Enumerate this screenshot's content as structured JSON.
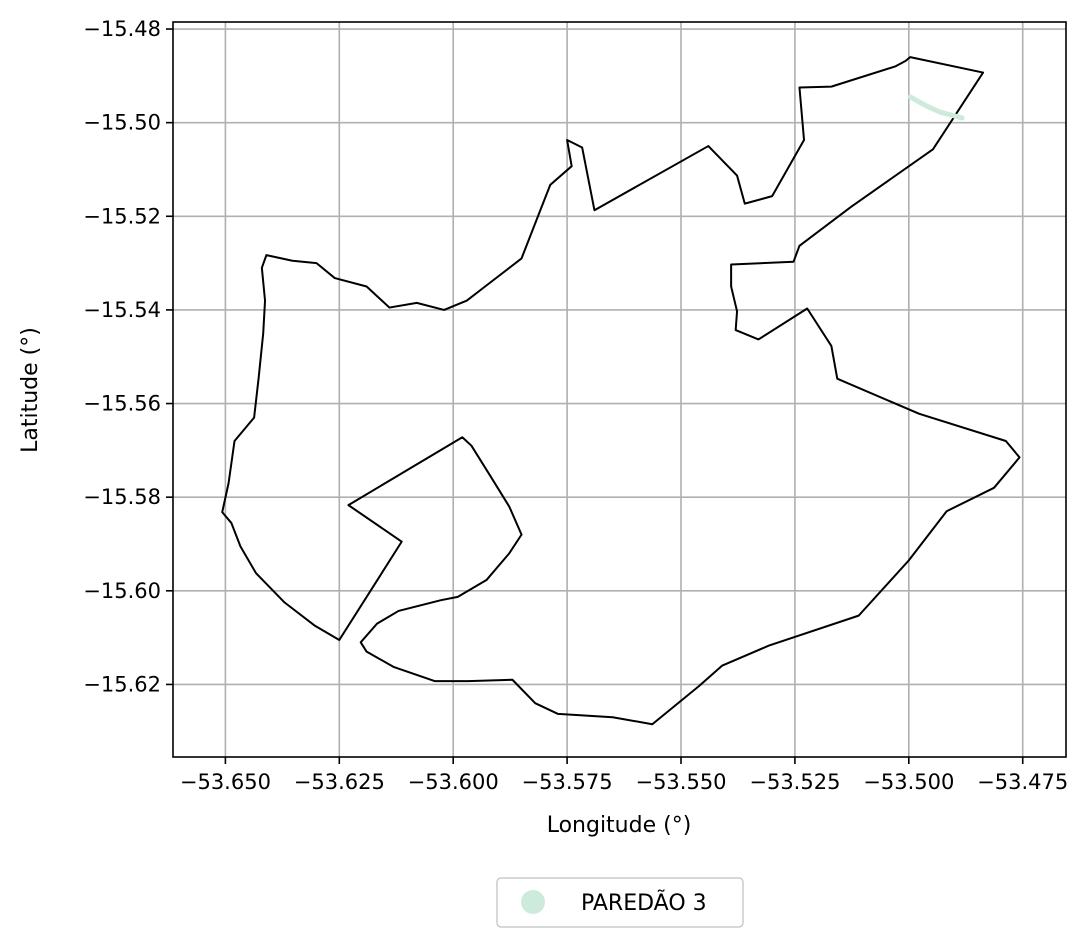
{
  "chart_data": {
    "type": "map",
    "xlabel": "Longitude (°)",
    "ylabel": "Latitude (°)",
    "xlim": [
      -53.6615,
      -53.4655
    ],
    "ylim": [
      -15.6355,
      -15.4785
    ],
    "grid": true,
    "x_ticks": [
      -53.65,
      -53.625,
      -53.6,
      -53.575,
      -53.55,
      -53.525,
      -53.5,
      -53.475
    ],
    "x_tick_labels": [
      "−53.650",
      "−53.625",
      "−53.600",
      "−53.575",
      "−53.550",
      "−53.525",
      "−53.500",
      "−53.475"
    ],
    "y_ticks": [
      -15.48,
      -15.5,
      -15.52,
      -15.54,
      -15.56,
      -15.58,
      -15.6,
      -15.62
    ],
    "y_tick_labels": [
      "−15.48",
      "−15.50",
      "−15.52",
      "−15.54",
      "−15.56",
      "−15.58",
      "−15.60",
      "−15.62"
    ],
    "boundary_color": "#000000",
    "boundary": [
      [
        -53.4997,
        -15.486
      ],
      [
        -53.4837,
        -15.4893
      ],
      [
        -53.4947,
        -15.5057
      ],
      [
        -53.5127,
        -15.518
      ],
      [
        -53.524,
        -15.5263
      ],
      [
        -53.5253,
        -15.5297
      ],
      [
        -53.539,
        -15.5303
      ],
      [
        -53.539,
        -15.535
      ],
      [
        -53.5377,
        -15.5403
      ],
      [
        -53.538,
        -15.5443
      ],
      [
        -53.533,
        -15.5463
      ],
      [
        -53.5223,
        -15.5397
      ],
      [
        -53.517,
        -15.5477
      ],
      [
        -53.5157,
        -15.5547
      ],
      [
        -53.4977,
        -15.5622
      ],
      [
        -53.4787,
        -15.568
      ],
      [
        -53.4757,
        -15.5715
      ],
      [
        -53.4813,
        -15.578
      ],
      [
        -53.4917,
        -15.583
      ],
      [
        -53.5,
        -15.5935
      ],
      [
        -53.511,
        -15.6053
      ],
      [
        -53.5307,
        -15.6117
      ],
      [
        -53.541,
        -15.616
      ],
      [
        -53.546,
        -15.6203
      ],
      [
        -53.5563,
        -15.6285
      ],
      [
        -53.565,
        -15.627
      ],
      [
        -53.577,
        -15.6263
      ],
      [
        -53.582,
        -15.624
      ],
      [
        -53.587,
        -15.619
      ],
      [
        -53.5967,
        -15.6193
      ],
      [
        -53.604,
        -15.6193
      ],
      [
        -53.613,
        -15.6163
      ],
      [
        -53.619,
        -15.613
      ],
      [
        -53.6203,
        -15.611
      ],
      [
        -53.6167,
        -15.607
      ],
      [
        -53.612,
        -15.6043
      ],
      [
        -53.6027,
        -15.602
      ],
      [
        -53.599,
        -15.6013
      ],
      [
        -53.5927,
        -15.5977
      ],
      [
        -53.5877,
        -15.592
      ],
      [
        -53.585,
        -15.588
      ],
      [
        -53.5877,
        -15.582
      ],
      [
        -53.5917,
        -15.5757
      ],
      [
        -53.596,
        -15.569
      ],
      [
        -53.598,
        -15.5672
      ],
      [
        -53.623,
        -15.5817
      ],
      [
        -53.6113,
        -15.5895
      ],
      [
        -53.625,
        -15.6105
      ],
      [
        -53.6303,
        -15.6075
      ],
      [
        -53.637,
        -15.6025
      ],
      [
        -53.6433,
        -15.5962
      ],
      [
        -53.6467,
        -15.5905
      ],
      [
        -53.6487,
        -15.5855
      ],
      [
        -53.6507,
        -15.5832
      ],
      [
        -53.6493,
        -15.577
      ],
      [
        -53.648,
        -15.568
      ],
      [
        -53.6437,
        -15.563
      ],
      [
        -53.6427,
        -15.5545
      ],
      [
        -53.6417,
        -15.545
      ],
      [
        -53.6413,
        -15.538
      ],
      [
        -53.642,
        -15.531
      ],
      [
        -53.641,
        -15.5283
      ],
      [
        -53.6353,
        -15.5295
      ],
      [
        -53.63,
        -15.53
      ],
      [
        -53.626,
        -15.5332
      ],
      [
        -53.619,
        -15.535
      ],
      [
        -53.614,
        -15.5395
      ],
      [
        -53.608,
        -15.5385
      ],
      [
        -53.602,
        -15.54
      ],
      [
        -53.597,
        -15.538
      ],
      [
        -53.593,
        -15.535
      ],
      [
        -53.585,
        -15.529
      ],
      [
        -53.581,
        -15.519
      ],
      [
        -53.5787,
        -15.5133
      ],
      [
        -53.574,
        -15.5093
      ],
      [
        -53.575,
        -15.5037
      ],
      [
        -53.5717,
        -15.5053
      ],
      [
        -53.569,
        -15.5187
      ],
      [
        -53.544,
        -15.505
      ],
      [
        -53.5377,
        -15.5113
      ],
      [
        -53.536,
        -15.5173
      ],
      [
        -53.53,
        -15.5157
      ],
      [
        -53.523,
        -15.5037
      ],
      [
        -53.524,
        -15.4925
      ],
      [
        -53.517,
        -15.4923
      ],
      [
        -53.503,
        -15.488
      ],
      [
        -53.5007,
        -15.4868
      ],
      [
        -53.4997,
        -15.486
      ]
    ],
    "legend": {
      "placement": "bottom-center",
      "entries": [
        {
          "label": "PAREDÃO 3",
          "color": "#cdeadc",
          "marker": "circle"
        }
      ]
    },
    "features": [
      {
        "name": "PAREDÃO 3",
        "color": "#cdeadc",
        "coords": [
          [
            -53.4997,
            -15.4945
          ],
          [
            -53.496,
            -15.4965
          ],
          [
            -53.493,
            -15.4978
          ],
          [
            -53.4883,
            -15.499
          ]
        ]
      }
    ]
  }
}
